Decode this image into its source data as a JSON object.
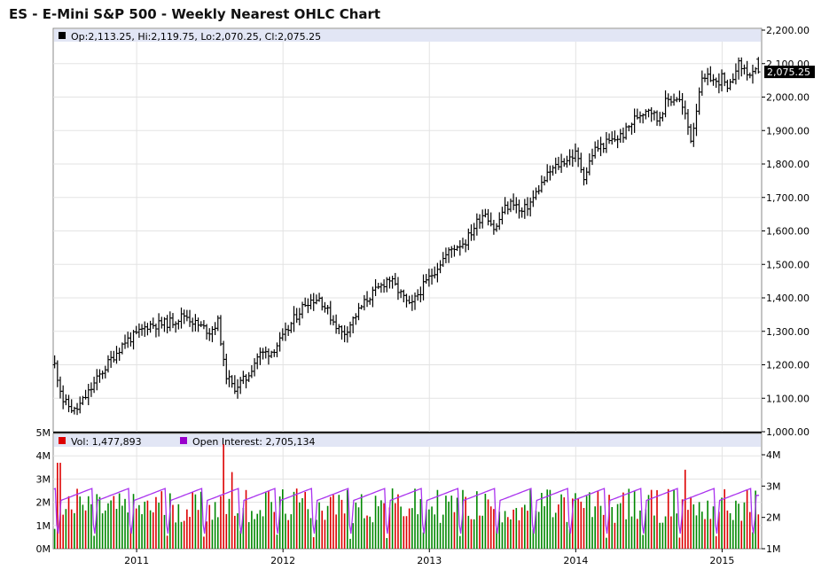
{
  "chart_data": [
    {
      "type": "ohlc",
      "title": "ES - E-Mini S&P 500 - Weekly Nearest OHLC Chart",
      "info": {
        "label": "Op:2,113.25, Hi:2,119.75, Lo:2,070.25, Cl:2,075.25",
        "open": 2113.25,
        "high": 2119.75,
        "low": 2070.25,
        "close": 2075.25
      },
      "last_price_label": "2,075.25",
      "last_price": 2075.25,
      "ylim": [
        1000,
        2200
      ],
      "y_ticks": [
        1000,
        1100,
        1200,
        1300,
        1400,
        1500,
        1600,
        1700,
        1800,
        1900,
        2000,
        2100,
        2200
      ],
      "y_tick_labels": [
        "1,000.00",
        "1,100.00",
        "1,200.00",
        "1,300.00",
        "1,400.00",
        "1,500.00",
        "1,600.00",
        "1,700.00",
        "1,800.00",
        "1,900.00",
        "2,000.00",
        "2,100.00",
        "2,200.00"
      ],
      "x_range": [
        2010.43,
        2015.27
      ],
      "x_ticks": [
        2011,
        2012,
        2013,
        2014,
        2015
      ],
      "x_tick_labels": [
        "2011",
        "2012",
        "2013",
        "2014",
        "2015"
      ],
      "grid": true,
      "price_path": [
        [
          2010.44,
          1200
        ],
        [
          2010.5,
          1090
        ],
        [
          2010.58,
          1060
        ],
        [
          2010.66,
          1110
        ],
        [
          2010.75,
          1170
        ],
        [
          2010.83,
          1220
        ],
        [
          2010.92,
          1270
        ],
        [
          2011.0,
          1290
        ],
        [
          2011.08,
          1320
        ],
        [
          2011.16,
          1320
        ],
        [
          2011.25,
          1330
        ],
        [
          2011.33,
          1350
        ],
        [
          2011.41,
          1320
        ],
        [
          2011.5,
          1300
        ],
        [
          2011.56,
          1330
        ],
        [
          2011.6,
          1180
        ],
        [
          2011.66,
          1130
        ],
        [
          2011.75,
          1160
        ],
        [
          2011.83,
          1230
        ],
        [
          2011.92,
          1240
        ],
        [
          2012.0,
          1280
        ],
        [
          2012.08,
          1340
        ],
        [
          2012.16,
          1390
        ],
        [
          2012.25,
          1400
        ],
        [
          2012.33,
          1340
        ],
        [
          2012.41,
          1290
        ],
        [
          2012.5,
          1350
        ],
        [
          2012.58,
          1400
        ],
        [
          2012.66,
          1430
        ],
        [
          2012.72,
          1460
        ],
        [
          2012.79,
          1420
        ],
        [
          2012.87,
          1370
        ],
        [
          2012.92,
          1410
        ],
        [
          2013.0,
          1460
        ],
        [
          2013.08,
          1510
        ],
        [
          2013.16,
          1550
        ],
        [
          2013.25,
          1570
        ],
        [
          2013.33,
          1630
        ],
        [
          2013.38,
          1660
        ],
        [
          2013.45,
          1600
        ],
        [
          2013.5,
          1660
        ],
        [
          2013.58,
          1690
        ],
        [
          2013.62,
          1650
        ],
        [
          2013.7,
          1690
        ],
        [
          2013.75,
          1730
        ],
        [
          2013.83,
          1780
        ],
        [
          2013.92,
          1810
        ],
        [
          2014.0,
          1830
        ],
        [
          2014.06,
          1760
        ],
        [
          2014.12,
          1840
        ],
        [
          2014.2,
          1860
        ],
        [
          2014.25,
          1870
        ],
        [
          2014.33,
          1890
        ],
        [
          2014.41,
          1940
        ],
        [
          2014.5,
          1970
        ],
        [
          2014.56,
          1930
        ],
        [
          2014.62,
          1990
        ],
        [
          2014.7,
          2000
        ],
        [
          2014.75,
          1940
        ],
        [
          2014.79,
          1870
        ],
        [
          2014.85,
          2040
        ],
        [
          2014.92,
          2060
        ],
        [
          2014.96,
          2040
        ],
        [
          2015.0,
          2060
        ],
        [
          2015.04,
          2010
        ],
        [
          2015.1,
          2100
        ],
        [
          2015.16,
          2080
        ],
        [
          2015.2,
          2060
        ],
        [
          2015.27,
          2090
        ]
      ]
    },
    {
      "type": "bar+line",
      "legend": [
        {
          "name": "Vol: 1,477,893",
          "color": "#dd0000"
        },
        {
          "name": "Open Interest: 2,705,134",
          "color": "#9900cc"
        }
      ],
      "volume_last": 1477893,
      "open_interest_last": 2705134,
      "left_ylim": [
        0,
        5000000
      ],
      "left_ticks": [
        0,
        1000000,
        2000000,
        3000000,
        4000000,
        5000000
      ],
      "left_tick_labels": [
        "0M",
        "1M",
        "2M",
        "3M",
        "4M",
        "5M"
      ],
      "right_ylim": [
        1000000,
        4000000
      ],
      "right_ticks": [
        1000000,
        2000000,
        3000000,
        4000000
      ],
      "right_tick_labels": [
        "1M",
        "2M",
        "3M",
        "4M"
      ],
      "volume_peaks": [
        [
          2010.47,
          3700000
        ],
        [
          2011.59,
          4500000
        ],
        [
          2011.65,
          3300000
        ],
        [
          2014.75,
          3400000
        ]
      ],
      "colors": {
        "up": "#008800",
        "down": "#dd0000",
        "oi": "#aa33ee"
      }
    }
  ]
}
